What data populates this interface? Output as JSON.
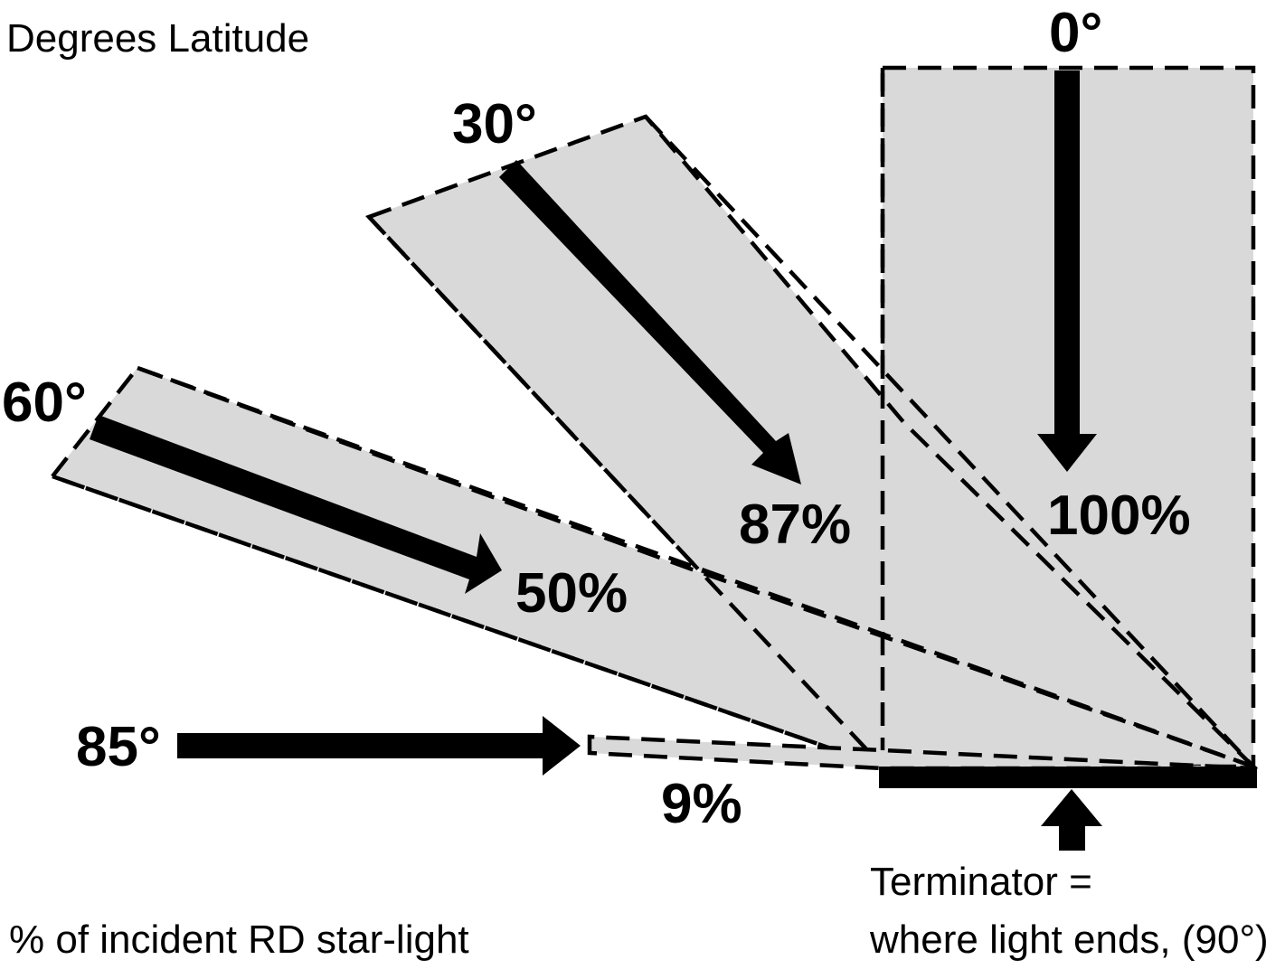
{
  "header_label": "Degrees Latitude",
  "footer_label": "% of incident RD star-light",
  "terminator": {
    "line1": "Terminator =",
    "line2": "where light ends, (90°)"
  },
  "beams": [
    {
      "latitude_label": "0°",
      "percent_label": "100%",
      "latitude_deg": 0,
      "percent": 100
    },
    {
      "latitude_label": "30°",
      "percent_label": "87%",
      "latitude_deg": 30,
      "percent": 87
    },
    {
      "latitude_label": "60°",
      "percent_label": "50%",
      "latitude_deg": 60,
      "percent": 50
    },
    {
      "latitude_label": "85°",
      "percent_label": "9%",
      "latitude_deg": 85,
      "percent": 9
    }
  ],
  "colors": {
    "beam_fill": "#d9d9d9",
    "ink": "#000000",
    "background": "#ffffff"
  }
}
